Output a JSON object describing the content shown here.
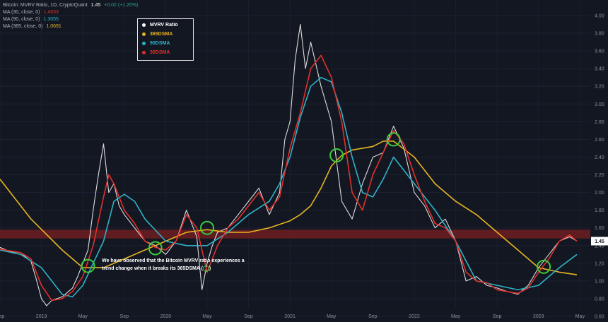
{
  "header": {
    "title": "Bitcoin: MVRV Ratio, 1D, CryptoQuant",
    "last": "1.45",
    "change": "+0.02 (+1.20%)",
    "indicators": [
      {
        "label": "MA (30, close, 0)",
        "value": "1.4533",
        "color": "#e0312b"
      },
      {
        "label": "MA (90, close, 0)",
        "value": "1.3055",
        "color": "#2fb2c7"
      },
      {
        "label": "MA (365, close, 0)",
        "value": "1.0691",
        "color": "#e6b422"
      }
    ]
  },
  "legend": [
    {
      "label": "MVRV Ratio",
      "color": "#ffffff"
    },
    {
      "label": "365DSMA",
      "color": "#e6b422"
    },
    {
      "label": "90DSMA",
      "color": "#2fb2c7"
    },
    {
      "label": "30DSMA",
      "color": "#e0312b"
    }
  ],
  "annotation": {
    "line1": "We have observed that the Bitcoin MVRV ratio experiences a",
    "line2": "trend change when it breaks its 365DSMA",
    "open": "(",
    "close": ")"
  },
  "price_label": "1.45",
  "chart_data": {
    "type": "line",
    "title": "Bitcoin: MVRV Ratio, 1D, CryptoQuant",
    "x_ticks": [
      "Sep",
      "2019",
      "May",
      "Sep",
      "2020",
      "May",
      "Sep",
      "2021",
      "May",
      "Sep",
      "2022",
      "May",
      "Sep",
      "2023",
      "May"
    ],
    "y_ticks": [
      "0.60",
      "0.80",
      "1.00",
      "1.20",
      "1.40",
      "1.60",
      "1.80",
      "2.00",
      "2.20",
      "2.40",
      "2.60",
      "2.80",
      "3.00",
      "3.20",
      "3.40",
      "3.60",
      "3.80",
      "4.00"
    ],
    "ylim": [
      0.6,
      4.0
    ],
    "x_unit": "months since Sep 2018",
    "xlim": [
      0,
      57
    ],
    "grid": true,
    "band": [
      1.48,
      1.58
    ],
    "series": [
      {
        "name": "MVRV Ratio",
        "color": "#ffffff",
        "x": [
          0,
          1,
          2,
          3,
          3.5,
          4,
          4.5,
          5,
          6,
          7,
          7.5,
          8,
          8.5,
          9,
          9.5,
          10,
          10.5,
          11,
          11.5,
          12,
          13,
          14,
          15,
          16,
          17,
          18,
          19,
          19.5,
          20,
          20.5,
          21,
          22,
          23,
          24,
          25,
          26,
          27,
          27.5,
          28,
          28.5,
          29,
          29.5,
          30,
          31,
          32,
          33,
          34,
          35,
          36,
          37,
          38,
          39,
          40,
          41,
          42,
          43,
          44,
          45,
          46,
          47,
          48,
          49,
          50,
          51,
          52,
          53,
          54,
          55,
          55.7
        ],
        "y": [
          1.38,
          1.33,
          1.32,
          1.22,
          1.02,
          0.8,
          0.72,
          0.78,
          0.82,
          0.92,
          1.05,
          1.2,
          1.35,
          1.8,
          2.2,
          2.55,
          2.0,
          2.1,
          1.85,
          1.75,
          1.6,
          1.45,
          1.4,
          1.3,
          1.45,
          1.8,
          1.5,
          0.9,
          1.2,
          1.4,
          1.55,
          1.6,
          1.75,
          1.9,
          2.05,
          1.75,
          2.0,
          2.6,
          2.8,
          3.5,
          3.9,
          3.4,
          3.7,
          3.2,
          2.8,
          1.9,
          1.7,
          2.1,
          2.4,
          2.45,
          2.75,
          2.5,
          2.0,
          1.85,
          1.6,
          1.7,
          1.45,
          1.0,
          1.05,
          0.95,
          0.92,
          0.88,
          0.85,
          0.95,
          1.15,
          1.3,
          1.45,
          1.5,
          1.45
        ]
      },
      {
        "name": "365DSMA",
        "color": "#e6b422",
        "x": [
          0,
          3,
          6,
          8,
          10,
          12,
          14,
          16,
          18,
          20,
          22,
          24,
          26,
          28,
          29,
          30,
          31,
          32,
          33,
          34,
          35,
          36,
          37,
          38,
          40,
          42,
          44,
          46,
          48,
          50,
          52,
          54,
          55.7
        ],
        "y": [
          2.15,
          1.7,
          1.35,
          1.15,
          1.15,
          1.25,
          1.35,
          1.45,
          1.55,
          1.58,
          1.55,
          1.55,
          1.6,
          1.68,
          1.75,
          1.85,
          2.05,
          2.3,
          2.42,
          2.48,
          2.5,
          2.52,
          2.58,
          2.58,
          2.4,
          2.1,
          1.9,
          1.75,
          1.55,
          1.35,
          1.15,
          1.1,
          1.07
        ]
      },
      {
        "name": "90DSMA",
        "color": "#2fb2c7",
        "x": [
          0,
          2,
          4,
          6,
          7,
          8,
          9,
          10,
          11,
          12,
          13,
          14,
          16,
          18,
          20,
          22,
          24,
          26,
          27,
          28,
          29,
          30,
          31,
          32,
          33,
          34,
          35,
          36,
          37,
          38,
          40,
          42,
          44,
          46,
          48,
          50,
          52,
          54,
          55.7
        ],
        "y": [
          1.35,
          1.3,
          1.15,
          0.85,
          0.82,
          0.95,
          1.2,
          1.45,
          1.9,
          1.98,
          1.9,
          1.7,
          1.45,
          1.4,
          1.4,
          1.55,
          1.75,
          1.9,
          2.1,
          2.4,
          2.85,
          3.2,
          3.3,
          3.25,
          2.9,
          2.4,
          2.0,
          1.95,
          2.15,
          2.4,
          2.1,
          1.8,
          1.45,
          1.0,
          0.95,
          0.9,
          0.95,
          1.15,
          1.3
        ]
      },
      {
        "name": "30DSMA",
        "color": "#e0312b",
        "x": [
          0,
          2,
          3,
          4,
          5,
          6,
          7,
          8,
          9,
          10,
          10.5,
          11,
          12,
          13,
          14,
          15,
          16,
          17,
          18,
          19,
          20,
          21,
          22,
          23,
          24,
          25,
          26,
          27,
          28,
          29,
          30,
          31,
          32,
          33,
          34,
          35,
          36,
          37,
          38,
          39,
          40,
          41,
          42,
          43,
          44,
          45,
          46,
          47,
          48,
          49,
          50,
          51,
          52,
          53,
          54,
          55,
          55.7
        ],
        "y": [
          1.36,
          1.32,
          1.25,
          0.95,
          0.78,
          0.8,
          0.88,
          1.05,
          1.4,
          1.95,
          2.2,
          2.1,
          1.8,
          1.65,
          1.45,
          1.38,
          1.35,
          1.45,
          1.75,
          1.6,
          1.1,
          1.4,
          1.6,
          1.7,
          1.85,
          2.0,
          1.8,
          1.95,
          2.5,
          2.9,
          3.4,
          3.55,
          3.3,
          2.8,
          2.0,
          1.8,
          2.2,
          2.45,
          2.7,
          2.55,
          2.2,
          1.9,
          1.65,
          1.6,
          1.45,
          1.1,
          1.0,
          0.98,
          0.9,
          0.88,
          0.86,
          0.92,
          1.1,
          1.25,
          1.45,
          1.52,
          1.45
        ]
      }
    ],
    "highlights": [
      {
        "x": 8.5,
        "y": 1.17
      },
      {
        "x": 15,
        "y": 1.37
      },
      {
        "x": 20,
        "y": 1.6
      },
      {
        "x": 32.5,
        "y": 2.42
      },
      {
        "x": 38,
        "y": 2.6
      },
      {
        "x": 52.5,
        "y": 1.16
      }
    ]
  }
}
